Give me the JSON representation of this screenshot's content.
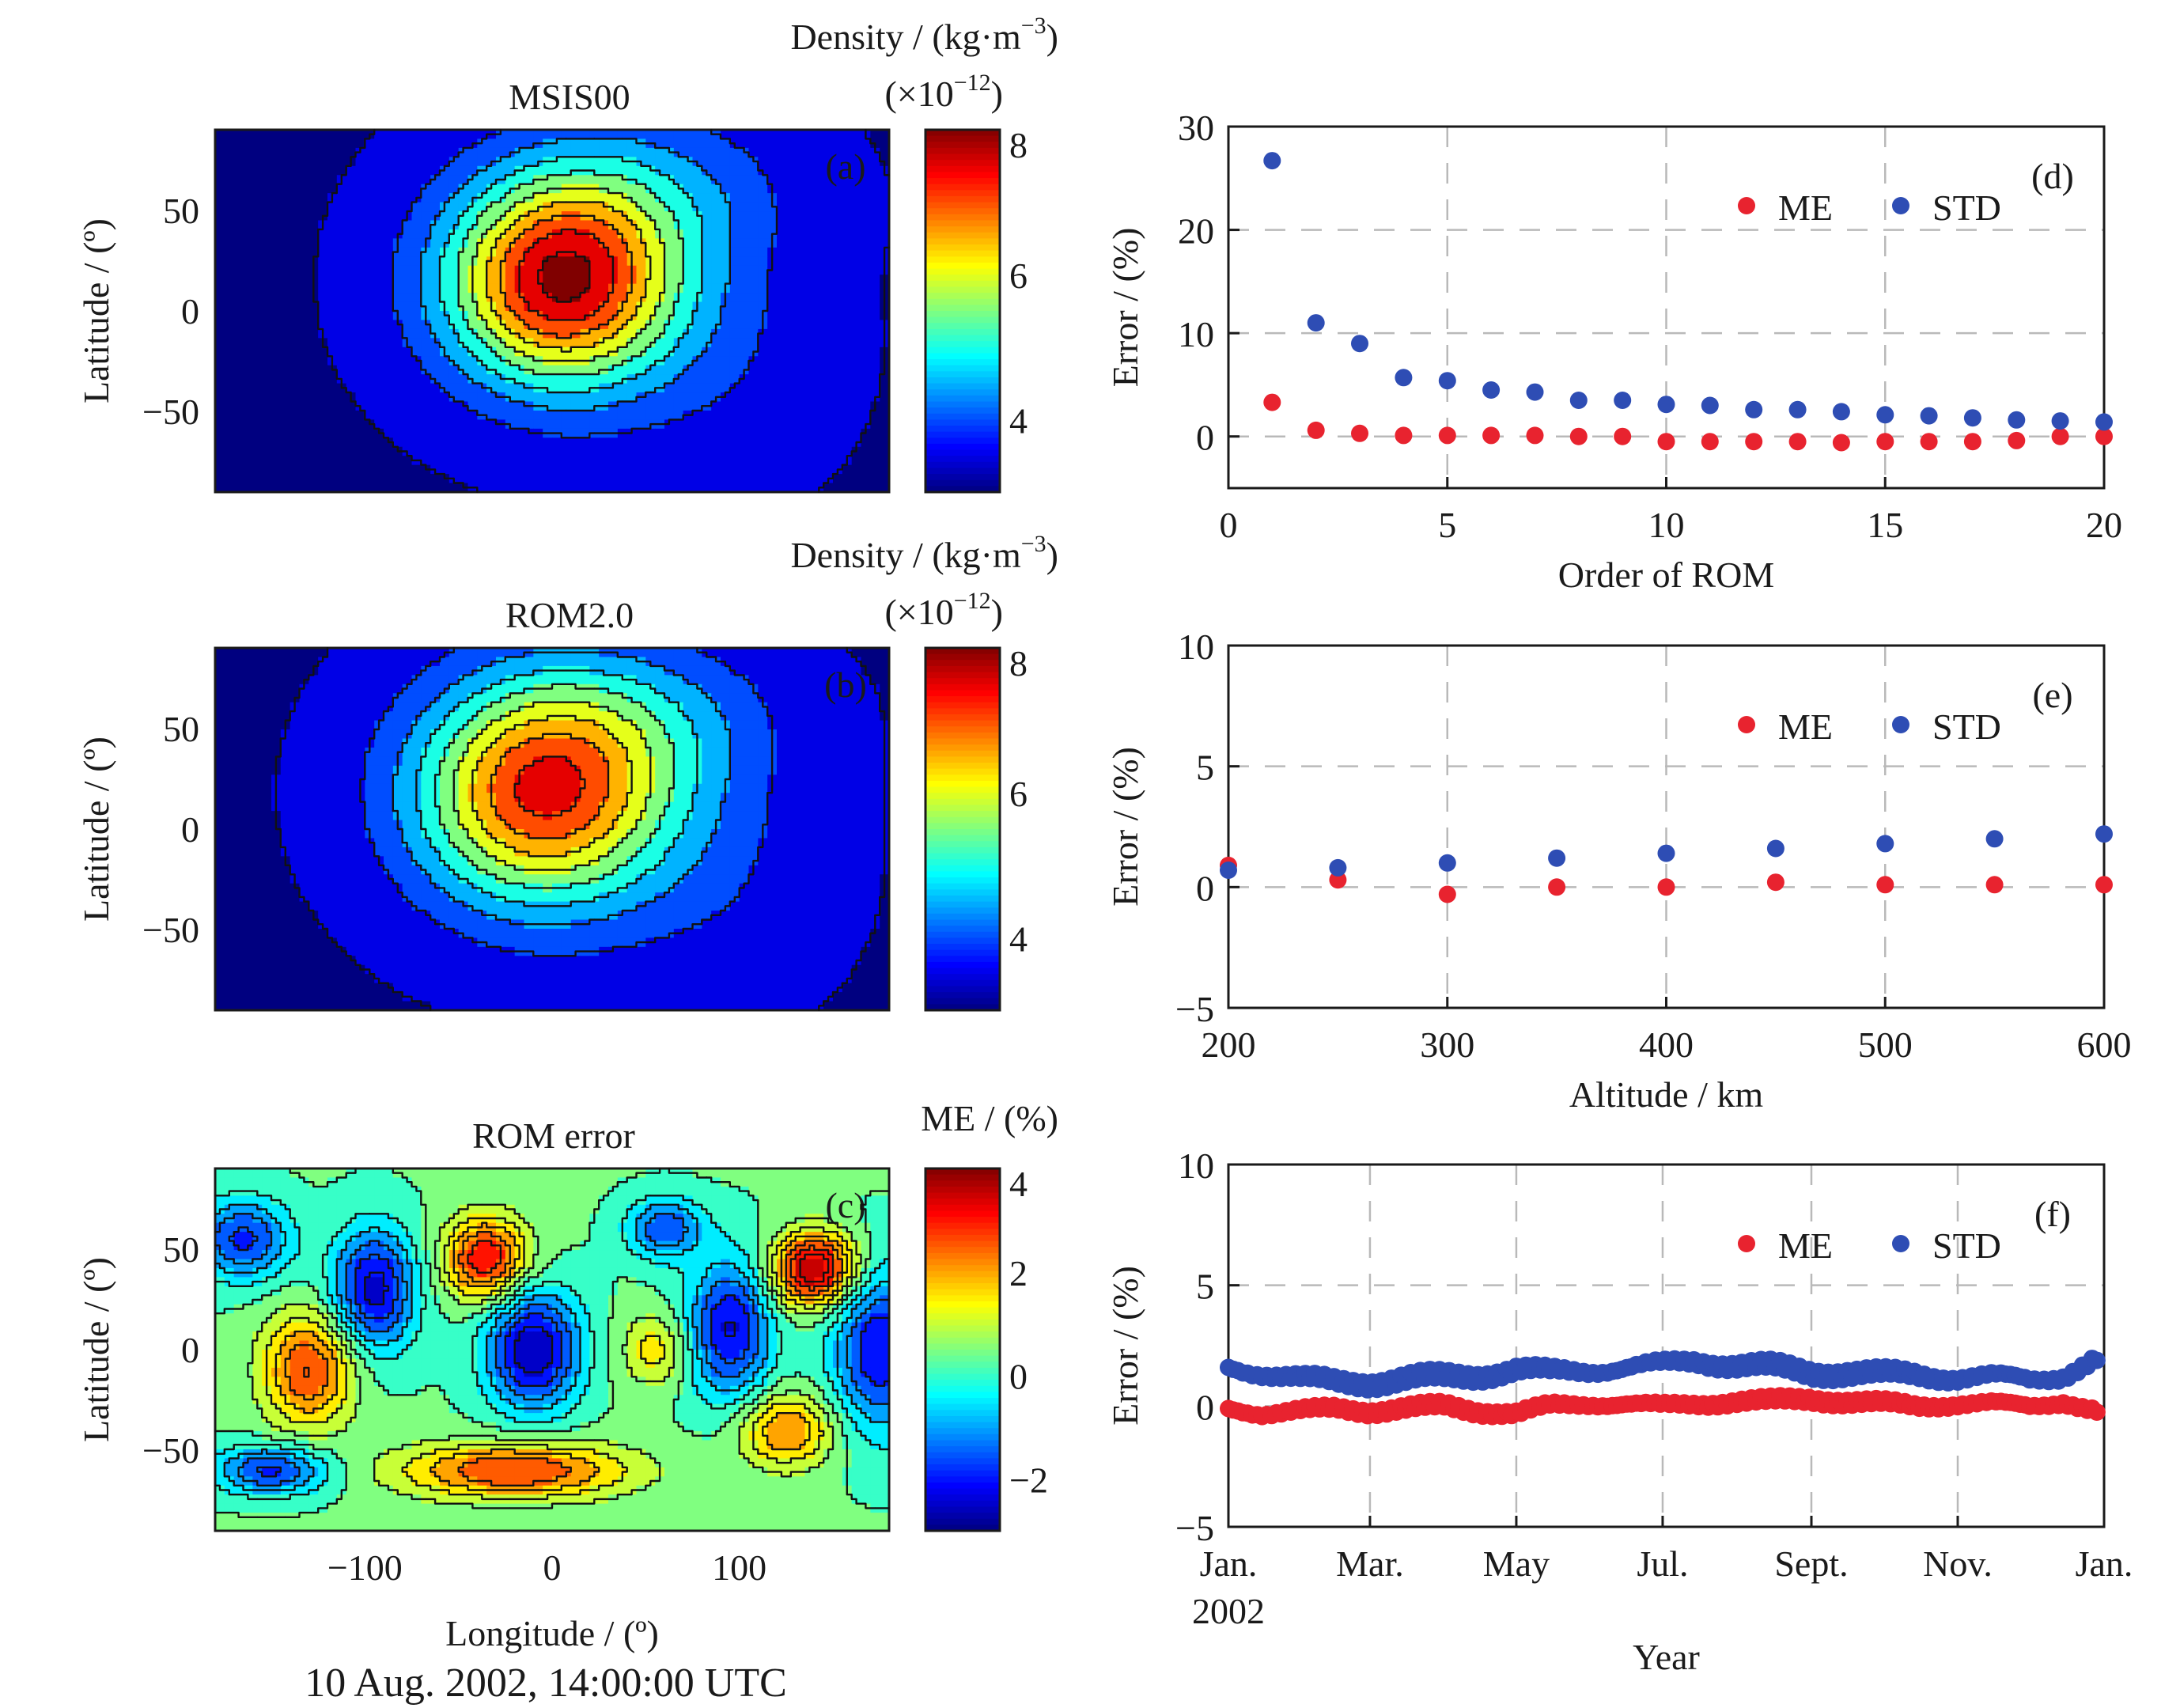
{
  "footer": "10 Aug. 2002, 14:00:00 UTC",
  "maps": [
    {
      "panel_label": "(a)",
      "title": "MSIS00",
      "ylabel": "Latitude / (º)",
      "xticks": [],
      "xlabel": "",
      "yticks": [
        "50",
        "0",
        "−50"
      ],
      "colorbar": {
        "title": "Density / (kg·m",
        "title_sup": "−3",
        "title_end": ")",
        "scale_pre": "(×10",
        "scale_sup": "−12",
        "scale_end": ")",
        "ticks": [
          "8",
          "6",
          "4"
        ]
      }
    },
    {
      "panel_label": "(b)",
      "title": "ROM2.0",
      "ylabel": "Latitude / (º)",
      "xticks": [],
      "xlabel": "",
      "yticks": [
        "50",
        "0",
        "−50"
      ],
      "colorbar": {
        "title": "Density / (kg·m",
        "title_sup": "−3",
        "title_end": ")",
        "scale_pre": "(×10",
        "scale_sup": "−12",
        "scale_end": ")",
        "ticks": [
          "8",
          "6",
          "4"
        ]
      }
    },
    {
      "panel_label": "(c)",
      "title": "ROM error",
      "ylabel": "Latitude / (º)",
      "xticks": [
        "−100",
        "0",
        "100"
      ],
      "xlabel": "Longitude / (º)",
      "yticks": [
        "50",
        "0",
        "−50"
      ],
      "colorbar": {
        "title": "ME / (%)",
        "title_sup": "",
        "title_end": "",
        "scale_pre": "",
        "scale_sup": "",
        "scale_end": "",
        "ticks": [
          "4",
          "2",
          "0",
          "−2"
        ]
      }
    }
  ],
  "chart_data": [
    {
      "type": "heatmap",
      "panel": "(a)",
      "title": "MSIS00",
      "ylabel": "Latitude / (º)",
      "xlim": [
        -180,
        180
      ],
      "ylim": [
        -90,
        90
      ],
      "colorbar_label": "Density / (kg·m−3) (×10−12)",
      "colorbar_range": [
        3,
        8
      ],
      "colorbar_ticks": [
        4,
        6,
        8
      ],
      "features": [
        {
          "kind": "max",
          "lon": 10,
          "lat": 18,
          "value": 7.9
        },
        {
          "kind": "min",
          "lon": -160,
          "lat": 0,
          "value": 3.2
        },
        {
          "kind": "min",
          "lon": 160,
          "lat": 0,
          "value": 3.2
        }
      ]
    },
    {
      "type": "heatmap",
      "panel": "(b)",
      "title": "ROM2.0",
      "ylabel": "Latitude / (º)",
      "xlim": [
        -180,
        180
      ],
      "ylim": [
        -90,
        90
      ],
      "colorbar_label": "Density / (kg·m−3) (×10−12)",
      "colorbar_range": [
        3,
        8
      ],
      "colorbar_ticks": [
        4,
        6,
        8
      ],
      "features": [
        {
          "kind": "max",
          "lon": 0,
          "lat": 20,
          "value": 7.2
        },
        {
          "kind": "min",
          "lon": -160,
          "lat": 0,
          "value": 3.2
        },
        {
          "kind": "min",
          "lon": 160,
          "lat": 0,
          "value": 3.2
        }
      ]
    },
    {
      "type": "heatmap",
      "panel": "(c)",
      "title": "ROM error",
      "xlabel": "Longitude / (º)",
      "ylabel": "Latitude / (º)",
      "xlim": [
        -180,
        180
      ],
      "ylim": [
        -90,
        90
      ],
      "colorbar_label": "ME / (%)",
      "colorbar_range": [
        -3,
        4
      ],
      "colorbar_ticks": [
        -2,
        0,
        2,
        4
      ],
      "features": [
        {
          "kind": "max",
          "lon": 140,
          "lat": 40,
          "value": 4
        },
        {
          "kind": "max",
          "lon": -35,
          "lat": 45,
          "value": 3
        },
        {
          "kind": "max",
          "lon": -130,
          "lat": -10,
          "value": 2.5
        },
        {
          "kind": "max",
          "lon": -20,
          "lat": -60,
          "value": 2.5
        },
        {
          "kind": "max",
          "lon": 125,
          "lat": -40,
          "value": 2
        }
      ]
    },
    {
      "type": "scatter",
      "panel": "(d)",
      "xlabel": "Order of ROM",
      "ylabel": "Error / (%)",
      "xlim": [
        0,
        20
      ],
      "ylim": [
        -5,
        30
      ],
      "xticks": [
        "0",
        "5",
        "10",
        "15",
        "20"
      ],
      "yticks": [
        "30",
        "20",
        "10",
        "0"
      ],
      "grid": true,
      "legend": "top-right",
      "series": [
        {
          "name": "ME",
          "color": "#e8232f",
          "x": [
            1,
            2,
            3,
            4,
            5,
            6,
            7,
            8,
            9,
            10,
            11,
            12,
            13,
            14,
            15,
            16,
            17,
            18,
            19,
            20
          ],
          "values": [
            3.3,
            0.6,
            0.3,
            0.1,
            0.1,
            0.1,
            0.1,
            0.0,
            0.0,
            -0.5,
            -0.5,
            -0.5,
            -0.5,
            -0.6,
            -0.5,
            -0.5,
            -0.5,
            -0.4,
            0.0,
            0.0
          ]
        },
        {
          "name": "STD",
          "color": "#2e4db4",
          "x": [
            1,
            2,
            3,
            4,
            5,
            6,
            7,
            8,
            9,
            10,
            11,
            12,
            13,
            14,
            15,
            16,
            17,
            18,
            19,
            20
          ],
          "values": [
            26.7,
            11.0,
            9.0,
            5.7,
            5.4,
            4.5,
            4.3,
            3.5,
            3.5,
            3.1,
            3.0,
            2.6,
            2.6,
            2.4,
            2.1,
            2.0,
            1.8,
            1.6,
            1.5,
            1.4
          ]
        }
      ]
    },
    {
      "type": "scatter",
      "panel": "(e)",
      "xlabel": "Altitude / km",
      "ylabel": "Error / (%)",
      "xlim": [
        200,
        600
      ],
      "ylim": [
        -5,
        10
      ],
      "xticks": [
        "200",
        "300",
        "400",
        "500",
        "600"
      ],
      "yticks": [
        "10",
        "5",
        "0",
        "−5"
      ],
      "grid": true,
      "legend": "top-right",
      "series": [
        {
          "name": "ME",
          "color": "#e8232f",
          "x": [
            200,
            250,
            300,
            350,
            400,
            450,
            500,
            550,
            600
          ],
          "values": [
            0.9,
            0.3,
            -0.3,
            0.0,
            0.0,
            0.2,
            0.1,
            0.1,
            0.1
          ]
        },
        {
          "name": "STD",
          "color": "#2e4db4",
          "x": [
            200,
            250,
            300,
            350,
            400,
            450,
            500,
            550,
            600
          ],
          "values": [
            0.7,
            0.8,
            1.0,
            1.2,
            1.4,
            1.6,
            1.8,
            2.0,
            2.2
          ]
        }
      ]
    },
    {
      "type": "scatter",
      "panel": "(f)",
      "xlabel": "Year",
      "ylabel": "Error / (%)",
      "xlim": [
        "2002-01-01",
        "2003-01-01"
      ],
      "ylim": [
        -5,
        10
      ],
      "xticks": [
        "Jan.",
        "Mar.",
        "May",
        "Jul.",
        "Sept.",
        "Nov.",
        "Jan."
      ],
      "xtick_sublabel": "2002",
      "yticks": [
        "10",
        "5",
        "0",
        "−5"
      ],
      "grid": true,
      "legend": "top-right",
      "series": [
        {
          "name": "ME",
          "color": "#e8232f",
          "x": [
            "2002-01-01",
            "2002-01-15",
            "2002-02-01",
            "2002-02-15",
            "2002-03-01",
            "2002-03-15",
            "2002-04-01",
            "2002-04-15",
            "2002-05-01",
            "2002-05-15",
            "2002-06-01",
            "2002-06-15",
            "2002-07-01",
            "2002-07-15",
            "2002-08-01",
            "2002-08-15",
            "2002-09-01",
            "2002-09-15",
            "2002-10-01",
            "2002-10-15",
            "2002-11-01",
            "2002-11-15",
            "2002-12-01",
            "2002-12-15",
            "2002-12-31"
          ],
          "values": [
            -0.1,
            -0.3,
            -0.2,
            -0.1,
            -0.2,
            -0.1,
            0.0,
            -0.2,
            -0.3,
            0.0,
            0.1,
            0.1,
            0.0,
            0.1,
            0.2,
            0.2,
            0.3,
            0.2,
            0.1,
            0.0,
            0.1,
            0.1,
            0.0,
            0.2,
            -0.3
          ]
        },
        {
          "name": "STD",
          "color": "#2e4db4",
          "x": [
            "2002-01-01",
            "2002-01-15",
            "2002-02-01",
            "2002-02-15",
            "2002-03-01",
            "2002-03-15",
            "2002-04-01",
            "2002-04-15",
            "2002-05-01",
            "2002-05-15",
            "2002-06-01",
            "2002-06-15",
            "2002-07-01",
            "2002-07-15",
            "2002-08-01",
            "2002-08-15",
            "2002-09-01",
            "2002-09-15",
            "2002-10-01",
            "2002-10-15",
            "2002-11-01",
            "2002-11-15",
            "2002-12-01",
            "2002-12-15",
            "2002-12-31"
          ],
          "values": [
            1.6,
            1.4,
            1.1,
            1.0,
            1.0,
            1.1,
            1.2,
            1.3,
            1.5,
            1.4,
            1.5,
            1.6,
            1.7,
            1.9,
            1.7,
            1.6,
            1.4,
            1.4,
            1.3,
            1.3,
            1.2,
            1.2,
            1.1,
            1.3,
            2.0
          ]
        }
      ]
    }
  ]
}
